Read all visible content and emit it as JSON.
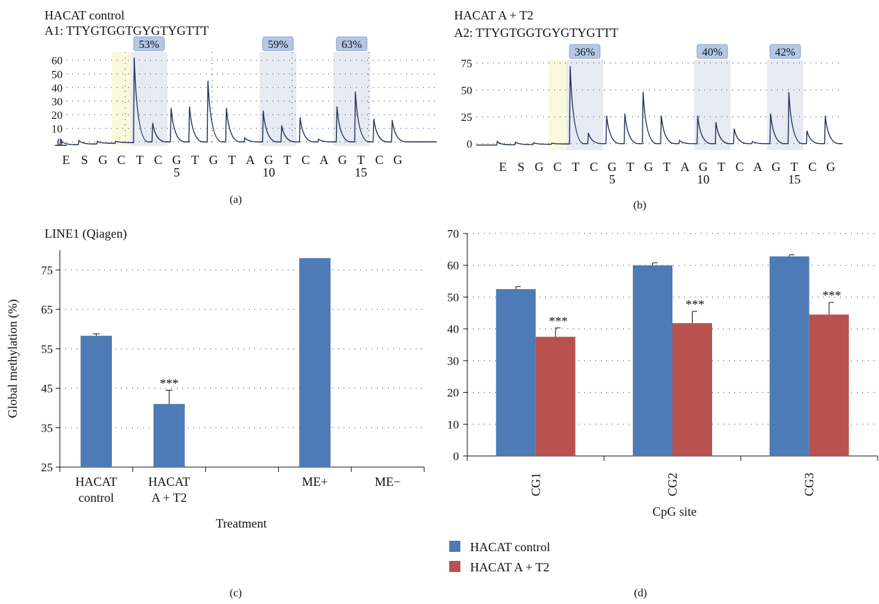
{
  "panel_a": {
    "title": "HACAT control",
    "subtitle": "A1: TTYGTGGTGYGTYGTTT",
    "label": "(a)"
  },
  "panel_b": {
    "title": "HACAT A + T2",
    "subtitle": "A2: TTYGTGGTGYGTYGTTT",
    "label": "(b)"
  },
  "panel_c": {
    "title": "LINE1 (Qiagen)",
    "label": "(c)"
  },
  "panel_d": {
    "label": "(d)",
    "legend_entries": [
      "HACAT control",
      "HACAT A + T2"
    ]
  },
  "colors": {
    "blue": "#4e7ab5",
    "red": "#b9514e",
    "pyro_highlight": "#e6ebf3",
    "pyro_yellow": "#fbf8dc",
    "pyro_badge": "#b4c8e6",
    "trace": "#1f2f5c"
  },
  "chart_data": [
    {
      "id": "a",
      "type": "line",
      "title": "HACAT control",
      "subtitle": "A1: TTYGTGGTGYGTYGTTT",
      "dispensation": [
        "E",
        "S",
        "G",
        "C",
        "T",
        "C",
        "G",
        "T",
        "G",
        "T",
        "A",
        "G",
        "T",
        "C",
        "A",
        "G",
        "T",
        "C",
        "G"
      ],
      "position_numbers": [
        {
          "index": 6,
          "label": "5"
        },
        {
          "index": 11,
          "label": "10"
        },
        {
          "index": 16,
          "label": "15"
        }
      ],
      "yticks": [
        0,
        10,
        20,
        30,
        40,
        50,
        60
      ],
      "ylim": [
        -3,
        66
      ],
      "peaks": [
        1.5,
        1.0,
        0.5,
        0.5,
        62,
        14,
        25,
        26,
        45,
        25,
        3,
        23,
        12,
        18,
        2,
        26,
        37,
        17,
        16
      ],
      "cpg_sites": [
        {
          "start": 4,
          "end": 5,
          "label": "53%"
        },
        {
          "start": 11,
          "end": 12,
          "label": "59%"
        },
        {
          "start": 15,
          "end": 16,
          "label": "63%"
        }
      ],
      "control_highlight_index": 3
    },
    {
      "id": "b",
      "type": "line",
      "title": "HACAT A + T2",
      "subtitle": "A2: TTYGTGGTGYGTYGTTT",
      "dispensation": [
        "E",
        "S",
        "G",
        "C",
        "T",
        "C",
        "G",
        "T",
        "G",
        "T",
        "A",
        "G",
        "T",
        "C",
        "A",
        "G",
        "T",
        "C",
        "G"
      ],
      "position_numbers": [
        {
          "index": 6,
          "label": "5"
        },
        {
          "index": 11,
          "label": "10"
        },
        {
          "index": 16,
          "label": "15"
        }
      ],
      "yticks": [
        0,
        25,
        50,
        75
      ],
      "ylim": [
        -6,
        78
      ],
      "peaks": [
        2,
        1.5,
        1,
        0.5,
        72,
        10,
        26,
        28,
        48,
        26,
        3,
        26,
        20,
        14,
        2,
        28,
        48,
        12,
        26
      ],
      "cpg_sites": [
        {
          "start": 4,
          "end": 5,
          "label": "36%"
        },
        {
          "start": 11,
          "end": 12,
          "label": "40%"
        },
        {
          "start": 15,
          "end": 16,
          "label": "42%"
        }
      ],
      "control_highlight_index": 3
    },
    {
      "id": "c",
      "type": "bar",
      "title": "LINE1 (Qiagen)",
      "xlabel": "Treatment",
      "ylabel": "Global methylation (%)",
      "categories": [
        "HACAT\ncontrol",
        "HACAT\nA + T2",
        "",
        "ME+",
        "ME−"
      ],
      "values": [
        58.3,
        41.0,
        null,
        78.0,
        null
      ],
      "errors": [
        0.5,
        3.5,
        null,
        null,
        null
      ],
      "annotations": [
        "",
        "***",
        "",
        "",
        ""
      ],
      "yticks": [
        25,
        35,
        45,
        55,
        65,
        75
      ],
      "ylim": [
        25,
        80
      ]
    },
    {
      "id": "d",
      "type": "bar",
      "xlabel": "CpG site",
      "ylabel": "",
      "categories": [
        "CG1",
        "CG2",
        "CG3"
      ],
      "series": [
        {
          "name": "HACAT control",
          "values": [
            52.5,
            60.0,
            62.8
          ],
          "errors": [
            0.8,
            0.8,
            0.5
          ],
          "annotations": [
            "",
            "",
            ""
          ]
        },
        {
          "name": "HACAT A + T2",
          "values": [
            37.5,
            41.8,
            44.5
          ],
          "errors": [
            2.8,
            3.7,
            3.8
          ],
          "annotations": [
            "***",
            "***",
            "***"
          ]
        }
      ],
      "yticks": [
        0,
        10,
        20,
        30,
        40,
        50,
        60,
        70
      ],
      "ylim": [
        0,
        70
      ],
      "legend_position": "bottom-left"
    }
  ]
}
